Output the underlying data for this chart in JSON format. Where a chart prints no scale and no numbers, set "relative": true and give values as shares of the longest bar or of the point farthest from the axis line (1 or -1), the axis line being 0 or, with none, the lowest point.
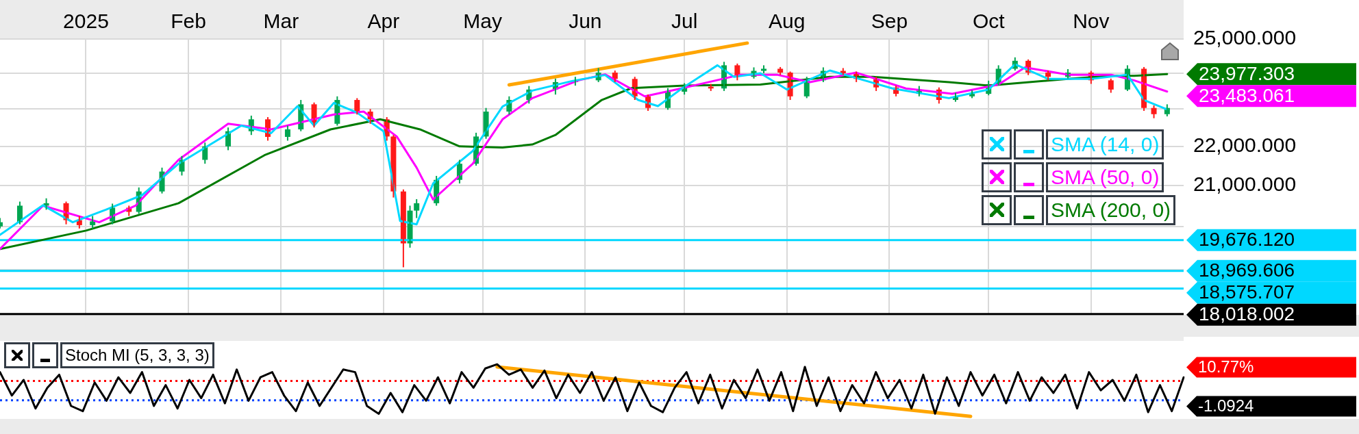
{
  "chart_data": [
    {
      "type": "candlestick",
      "x": [
        "2024-12-06",
        "2024-12-12",
        "2024-12-20",
        "2024-12-26",
        "2024-12-30",
        "2025-01-03",
        "2025-01-09",
        "2025-01-14",
        "2025-01-17",
        "2025-01-24",
        "2025-01-30",
        "2025-02-06",
        "2025-02-13",
        "2025-02-20",
        "2025-02-25",
        "2025-03-03",
        "2025-03-07",
        "2025-03-11",
        "2025-03-18",
        "2025-03-24",
        "2025-03-28",
        "2025-04-02",
        "2025-04-04",
        "2025-04-07",
        "2025-04-09",
        "2025-04-11",
        "2025-04-17",
        "2025-04-24",
        "2025-04-29",
        "2025-05-02",
        "2025-05-09",
        "2025-05-15",
        "2025-05-23",
        "2025-05-29",
        "2025-06-05",
        "2025-06-10",
        "2025-06-16",
        "2025-06-20",
        "2025-06-26",
        "2025-07-01",
        "2025-07-09",
        "2025-07-13",
        "2025-07-17",
        "2025-07-22",
        "2025-07-25",
        "2025-07-30",
        "2025-08-02",
        "2025-08-07",
        "2025-08-12",
        "2025-08-18",
        "2025-08-22",
        "2025-08-28",
        "2025-09-03",
        "2025-09-10",
        "2025-09-16",
        "2025-09-21",
        "2025-09-26",
        "2025-10-01",
        "2025-10-04",
        "2025-10-09",
        "2025-10-13",
        "2025-10-19",
        "2025-10-25",
        "2025-11-01",
        "2025-11-07",
        "2025-11-12",
        "2025-11-17",
        "2025-11-20",
        "2025-11-24"
      ],
      "ohlc": [
        [
          20000,
          20200,
          19950,
          20100
        ],
        [
          20100,
          20600,
          20050,
          20500
        ],
        [
          20500,
          20680,
          20400,
          20560
        ],
        [
          20560,
          20600,
          20050,
          20150
        ],
        [
          20150,
          20250,
          19950,
          20030
        ],
        [
          20030,
          20250,
          19950,
          20120
        ],
        [
          20120,
          20550,
          20050,
          20450
        ],
        [
          20450,
          20500,
          20250,
          20350
        ],
        [
          20350,
          20950,
          20300,
          20850
        ],
        [
          20850,
          21450,
          20800,
          21350
        ],
        [
          21350,
          21750,
          21250,
          21650
        ],
        [
          21650,
          22100,
          21550,
          22000
        ],
        [
          22000,
          22500,
          21900,
          22400
        ],
        [
          22400,
          22820,
          22300,
          22720
        ],
        [
          22720,
          22780,
          22150,
          22250
        ],
        [
          22250,
          22550,
          22150,
          22450
        ],
        [
          22450,
          23250,
          22400,
          23130
        ],
        [
          23130,
          23180,
          22500,
          22600
        ],
        [
          22600,
          23350,
          22550,
          23250
        ],
        [
          23250,
          23300,
          22850,
          22930
        ],
        [
          22930,
          23000,
          22600,
          22720
        ],
        [
          22720,
          22780,
          22150,
          22260
        ],
        [
          22260,
          22300,
          20700,
          20850
        ],
        [
          20850,
          20900,
          19050,
          19600
        ],
        [
          19600,
          20500,
          19500,
          20380
        ],
        [
          20380,
          20660,
          20200,
          20560
        ],
        [
          20560,
          21240,
          20500,
          21140
        ],
        [
          21140,
          21650,
          21050,
          21550
        ],
        [
          21550,
          22360,
          21500,
          22260
        ],
        [
          22260,
          23030,
          22200,
          22930
        ],
        [
          22930,
          23350,
          22850,
          23250
        ],
        [
          23250,
          23640,
          23150,
          23540
        ],
        [
          23540,
          23850,
          23400,
          23750
        ],
        [
          23750,
          23900,
          23650,
          23800
        ],
        [
          23800,
          24150,
          23750,
          24020
        ],
        [
          24020,
          24080,
          23750,
          23840
        ],
        [
          23840,
          23900,
          23250,
          23350
        ],
        [
          23350,
          23400,
          22950,
          23030
        ],
        [
          23030,
          23580,
          22980,
          23480
        ],
        [
          23480,
          23720,
          23400,
          23620
        ],
        [
          23620,
          23700,
          23500,
          23570
        ],
        [
          23570,
          24330,
          23500,
          24230
        ],
        [
          24230,
          24280,
          23800,
          23900
        ],
        [
          23900,
          24170,
          23850,
          24070
        ],
        [
          24070,
          24230,
          24000,
          24130
        ],
        [
          24130,
          24180,
          23950,
          24020
        ],
        [
          24020,
          24050,
          23250,
          23350
        ],
        [
          23350,
          23900,
          23300,
          23800
        ],
        [
          23800,
          24170,
          23750,
          24070
        ],
        [
          24070,
          24150,
          23950,
          24000
        ],
        [
          24000,
          24050,
          23750,
          23840
        ],
        [
          23840,
          23900,
          23500,
          23600
        ],
        [
          23600,
          23650,
          23350,
          23420
        ],
        [
          23420,
          23640,
          23350,
          23540
        ],
        [
          23540,
          23600,
          23150,
          23250
        ],
        [
          23250,
          23450,
          23200,
          23350
        ],
        [
          23350,
          23520,
          23300,
          23420
        ],
        [
          23420,
          23790,
          23380,
          23690
        ],
        [
          23690,
          24230,
          23650,
          24130
        ],
        [
          24130,
          24460,
          24080,
          24360
        ],
        [
          24360,
          24400,
          23950,
          24020
        ],
        [
          24020,
          24080,
          23800,
          23900
        ],
        [
          23900,
          24120,
          23850,
          24020
        ],
        [
          24020,
          24070,
          23700,
          23800
        ],
        [
          23800,
          23850,
          23450,
          23540
        ],
        [
          23540,
          24230,
          23500,
          24130
        ],
        [
          24130,
          24180,
          22950,
          23030
        ],
        [
          23030,
          23100,
          22750,
          22860
        ],
        [
          22860,
          23130,
          22800,
          23030
        ]
      ],
      "series": [
        {
          "type": "line",
          "name": "SMA (14, 0)",
          "color": "#00d8ff",
          "x": [
            "2024-12-06",
            "2024-12-19",
            "2024-12-28",
            "2025-01-07",
            "2025-01-18",
            "2025-01-29",
            "2025-02-17",
            "2025-02-26",
            "2025-03-06",
            "2025-03-11",
            "2025-03-17",
            "2025-03-24",
            "2025-04-01",
            "2025-04-06",
            "2025-04-11",
            "2025-04-16",
            "2025-04-28",
            "2025-05-07",
            "2025-05-16",
            "2025-05-28",
            "2025-06-07",
            "2025-06-17",
            "2025-06-23",
            "2025-07-01",
            "2025-07-11",
            "2025-07-16",
            "2025-07-24",
            "2025-08-01",
            "2025-08-14",
            "2025-09-02",
            "2025-09-19",
            "2025-10-01",
            "2025-10-09",
            "2025-10-19",
            "2025-11-01",
            "2025-11-12",
            "2025-11-17",
            "2025-11-24"
          ],
          "values": [
            19800,
            20510,
            20100,
            20400,
            20760,
            21550,
            22550,
            22350,
            23080,
            22550,
            23170,
            22900,
            22400,
            20130,
            20050,
            21050,
            21880,
            23070,
            23510,
            23780,
            23950,
            23250,
            23080,
            23620,
            24230,
            23900,
            24000,
            23540,
            24080,
            23570,
            23300,
            23540,
            24260,
            23840,
            23840,
            23960,
            23250,
            22990
          ]
        },
        {
          "type": "line",
          "name": "SMA (50, 0)",
          "color": "#ff00ff",
          "x": [
            "2024-12-06",
            "2024-12-19",
            "2025-01-05",
            "2025-01-16",
            "2025-01-29",
            "2025-02-13",
            "2025-02-26",
            "2025-03-17",
            "2025-03-26",
            "2025-04-05",
            "2025-04-11",
            "2025-04-16",
            "2025-04-28",
            "2025-05-07",
            "2025-05-16",
            "2025-05-30",
            "2025-06-07",
            "2025-06-19",
            "2025-06-30",
            "2025-07-18",
            "2025-07-29",
            "2025-08-08",
            "2025-08-22",
            "2025-09-06",
            "2025-09-20",
            "2025-10-04",
            "2025-10-12",
            "2025-10-25",
            "2025-11-07",
            "2025-11-14",
            "2025-11-24"
          ],
          "values": [
            19470,
            20500,
            20100,
            20500,
            21650,
            22600,
            22450,
            22850,
            22930,
            22260,
            21450,
            20650,
            21550,
            22720,
            23300,
            23800,
            23970,
            23350,
            23570,
            23960,
            23960,
            23750,
            24020,
            23570,
            23420,
            23680,
            24170,
            23960,
            23960,
            23800,
            23483.061
          ],
          "value_labels": [
            null,
            null,
            null,
            null,
            null,
            null,
            null,
            null,
            null,
            null,
            null,
            null,
            null,
            null,
            null,
            null,
            null,
            null,
            null,
            null,
            null,
            null,
            null,
            null,
            null,
            null,
            null,
            null,
            null,
            null,
            "23,483.061"
          ]
        },
        {
          "type": "line",
          "name": "SMA (200, 0)",
          "color": "#007a00",
          "x": [
            "2024-12-06",
            "2025-01-01",
            "2025-01-29",
            "2025-02-24",
            "2025-03-16",
            "2025-03-31",
            "2025-04-12",
            "2025-04-24",
            "2025-05-07",
            "2025-05-16",
            "2025-05-23",
            "2025-06-06",
            "2025-06-15",
            "2025-07-01",
            "2025-07-24",
            "2025-08-14",
            "2025-08-27",
            "2025-09-19",
            "2025-10-01",
            "2025-10-25",
            "2025-11-07",
            "2025-11-14",
            "2025-11-24"
          ],
          "values": [
            19470,
            19900,
            20560,
            21770,
            22450,
            22720,
            22450,
            22000,
            21970,
            22050,
            22300,
            23250,
            23580,
            23650,
            23680,
            23900,
            23900,
            23750,
            23650,
            23840,
            23930,
            23930,
            23977.303
          ],
          "value_labels": [
            null,
            null,
            null,
            null,
            null,
            null,
            null,
            null,
            null,
            null,
            null,
            null,
            null,
            null,
            null,
            null,
            null,
            null,
            null,
            null,
            null,
            null,
            "23,977.303"
          ]
        },
        {
          "type": "line",
          "color": "#ffa500",
          "x": [
            "2025-05-09",
            "2025-07-20"
          ],
          "values": [
            23670,
            24880
          ]
        }
      ],
      "xlim": [
        "2024-12-06",
        "2025-11-29"
      ],
      "xticks": [
        {
          "value": "2025-01-01",
          "label": "2025"
        },
        {
          "value": "2025-02-01",
          "label": "Feb"
        },
        {
          "value": "2025-03-01",
          "label": "Mar"
        },
        {
          "value": "2025-04-01",
          "label": "Apr"
        },
        {
          "value": "2025-05-01",
          "label": "May"
        },
        {
          "value": "2025-06-01",
          "label": "Jun"
        },
        {
          "value": "2025-07-01",
          "label": "Jul"
        },
        {
          "value": "2025-08-01",
          "label": "Aug"
        },
        {
          "value": "2025-09-01",
          "label": "Sep"
        },
        {
          "value": "2025-10-01",
          "label": "Oct"
        },
        {
          "value": "2025-11-01",
          "label": "Nov"
        }
      ],
      "ylim": [
        18000,
        25000
      ],
      "yticks": [
        {
          "value": 18000,
          "label": null
        },
        {
          "value": 19000,
          "label": null
        },
        {
          "value": 20000,
          "label": null
        },
        {
          "value": 21000,
          "label": "21,000.000"
        },
        {
          "value": 22000,
          "label": "22,000.000"
        },
        {
          "value": 23000,
          "label": null
        },
        {
          "value": 24000,
          "label": null
        },
        {
          "value": 25000,
          "label": "25,000.000"
        }
      ],
      "log": "y",
      "grid": true,
      "legend": "right",
      "marker": "none",
      "ref_lines": [
        {
          "axis": "y",
          "value": 19676.12,
          "label": "19,676.120",
          "color": "#00d8ff"
        },
        {
          "axis": "y",
          "value": 18969.606,
          "label": "18,969.606",
          "color": "#00d8ff"
        },
        {
          "axis": "y",
          "value": 18575.707,
          "label": "18,575.707",
          "color": "#00d8ff"
        },
        {
          "axis": "y",
          "value": 18018.002,
          "label": "18,018.002",
          "color": "#000000"
        }
      ]
    },
    {
      "type": "line",
      "relative": true,
      "categories": [
        null,
        null,
        null,
        null,
        null,
        null,
        null,
        null,
        null,
        null,
        null,
        null,
        null,
        null,
        null,
        null,
        null,
        null,
        null,
        null,
        null,
        null,
        null,
        null,
        null,
        null,
        null,
        null,
        null,
        null,
        null,
        null,
        null,
        null,
        null,
        null,
        null,
        null,
        null,
        null,
        null,
        null,
        null,
        null,
        null,
        null,
        null,
        null,
        null,
        null,
        null,
        null,
        null,
        null,
        null,
        null,
        null,
        null,
        null,
        null,
        null,
        null,
        null,
        null,
        null,
        null,
        null,
        null,
        null,
        null,
        null,
        null,
        null,
        null,
        null,
        null,
        null,
        null,
        null,
        null,
        null,
        null,
        null,
        null,
        null,
        null,
        null,
        null,
        null,
        null,
        null,
        null,
        null,
        null,
        null,
        null,
        null,
        null,
        null,
        null,
        null
      ],
      "series": [
        {
          "name": "Stoch MI (5, 3, 3, 3)",
          "color": "#000000",
          "values": [
            0.85,
            0.4,
            0.7,
            0.15,
            0.55,
            0.8,
            0.2,
            0.1,
            0.65,
            0.3,
            0.75,
            0.45,
            0.85,
            0.2,
            0.6,
            0.15,
            0.7,
            0.35,
            0.8,
            0.25,
            0.9,
            0.3,
            0.75,
            0.85,
            0.4,
            0.1,
            0.65,
            0.2,
            0.55,
            0.9,
            0.85,
            0.2,
            0.05,
            0.45,
            0.08,
            0.6,
            0.3,
            0.75,
            0.25,
            0.85,
            0.55,
            0.92,
            1,
            0.8,
            0.9,
            0.55,
            0.88,
            0.35,
            0.8,
            0.45,
            0.85,
            0.3,
            0.75,
            0.1,
            0.65,
            0.2,
            0.08,
            0.55,
            0.85,
            0.25,
            0.8,
            0.15,
            0.7,
            0.35,
            0.9,
            0.3,
            0.85,
            0.1,
            0.95,
            0.2,
            0.75,
            0.1,
            0.6,
            0.25,
            0.85,
            0.35,
            0.7,
            0.15,
            0.8,
            0.05,
            0.75,
            0.2,
            0.85,
            0.4,
            0.8,
            0.25,
            0.85,
            0.3,
            0.75,
            0.45,
            0.8,
            0.15,
            0.85,
            0.5,
            0.7,
            0.3,
            0.8,
            0.08,
            0.6,
            0.1,
            0.75
          ]
        },
        {
          "color": "#ffa500",
          "values": [
            null,
            null,
            null,
            null,
            null,
            null,
            null,
            null,
            null,
            null,
            null,
            null,
            null,
            null,
            null,
            null,
            null,
            null,
            null,
            null,
            null,
            null,
            null,
            null,
            null,
            null,
            null,
            null,
            null,
            null,
            null,
            null,
            null,
            null,
            null,
            null,
            null,
            null,
            null,
            null,
            null,
            null,
            0.95,
            null,
            null,
            null,
            null,
            null,
            null,
            null,
            null,
            null,
            null,
            null,
            null,
            null,
            null,
            null,
            null,
            null,
            null,
            null,
            null,
            null,
            null,
            null,
            null,
            null,
            null,
            null,
            null,
            null,
            null,
            null,
            null,
            null,
            null,
            null,
            null,
            null,
            null,
            null,
            0,
            null,
            null,
            null,
            null,
            null,
            null,
            null,
            null,
            null,
            null,
            null,
            null,
            null,
            null,
            null,
            null,
            null,
            null
          ]
        }
      ],
      "legend": "top left",
      "marker": "none",
      "ref_lines": [
        {
          "axis": "y",
          "value": 0.68,
          "color": "#ff0000",
          "line_style": "dotted"
        },
        {
          "axis": "y",
          "value": 0.31,
          "color": "#0044ff",
          "line_style": "dotted"
        }
      ],
      "annotations": [
        "10.77%",
        "-1.0924"
      ]
    }
  ]
}
